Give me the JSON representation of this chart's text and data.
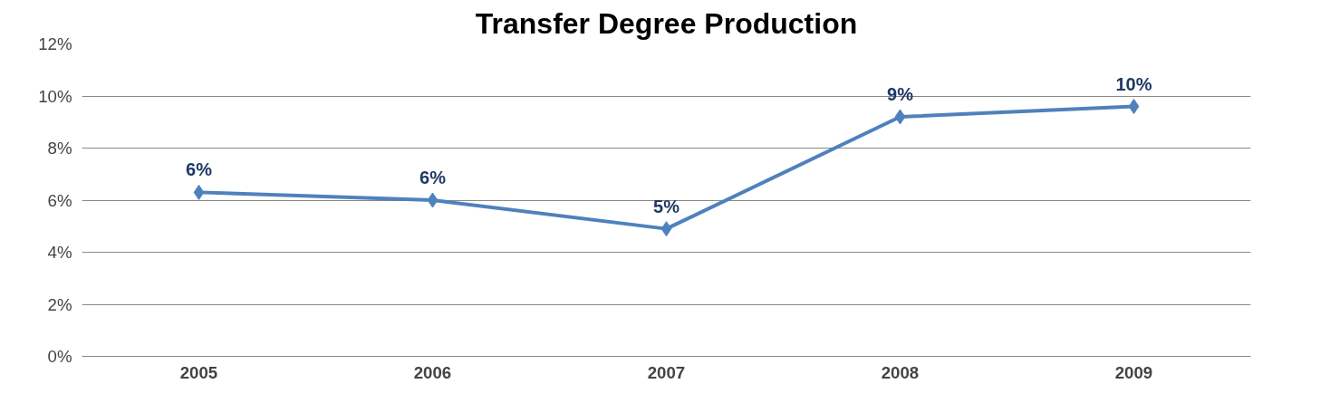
{
  "chart_data": {
    "type": "line",
    "title": "Transfer Degree Production",
    "categories": [
      "2005",
      "2006",
      "2007",
      "2008",
      "2009"
    ],
    "series": [
      {
        "color": "#4f81bd",
        "values": [
          6.3,
          6.0,
          4.9,
          9.2,
          9.6
        ],
        "value_labels": [
          "6%",
          "6%",
          "5%",
          "9%",
          "10%"
        ]
      }
    ],
    "ylim": [
      0,
      12
    ],
    "yticks": [
      {
        "value": 0,
        "label": "0%"
      },
      {
        "value": 2,
        "label": "2%"
      },
      {
        "value": 4,
        "label": "4%"
      },
      {
        "value": 6,
        "label": "6%"
      },
      {
        "value": 8,
        "label": "8%"
      },
      {
        "value": 10,
        "label": "10%"
      },
      {
        "value": 12,
        "label": "12%"
      }
    ],
    "grid": "y",
    "marker": "diamond",
    "line_style": "solid"
  }
}
